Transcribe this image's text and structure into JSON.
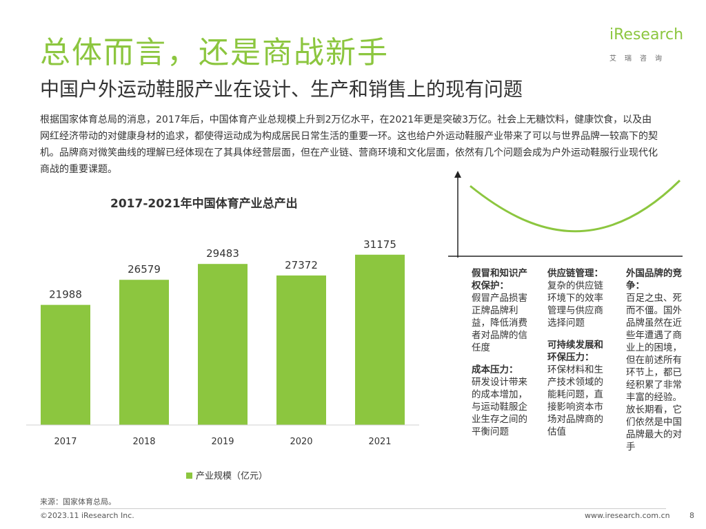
{
  "header": {
    "title": "总体而言，还是商战新手",
    "subtitle": "中国户外运动鞋服产业在设计、生产和销售上的现有问题"
  },
  "logo": {
    "text": "iResearch",
    "sub": "艾瑞咨询"
  },
  "intro": "根据国家体育总局的消息，2017年后，中国体育产业总规模上升到2万亿水平，在2021年更是突破3万亿。社会上无糖饮料，健康饮食，以及由网红经济带动的对健康身材的追求，都使得运动成为构成居民日常生活的重要一环。这也给户外运动鞋服产业带来了可以与世界品牌一较高下的契机。品牌商对微笑曲线的理解已经体现在了其具体经营层面，但在产业链、营商环境和文化层面，依然有几个问题会成为户外运动鞋服行业现代化商战的重要课题。",
  "chart_data": {
    "type": "bar",
    "title": "2017-2021年中国体育产业总产出",
    "categories": [
      "2017",
      "2018",
      "2019",
      "2020",
      "2021"
    ],
    "series": [
      {
        "name": "产业规模（亿元）",
        "values": [
          21988,
          26579,
          29483,
          27372,
          31175
        ]
      }
    ],
    "ylim": [
      0,
      35000
    ],
    "grid": false,
    "legend": "bottom",
    "bar_color": "#8cc63f"
  },
  "problems": [
    [
      {
        "head": "假冒和知识产权保护：",
        "body": "假冒产品损害正牌品牌利益，降低消费者对品牌的信任度"
      },
      {
        "head": "成本压力：",
        "body": "研发设计带来的成本增加，与运动鞋服企业生存之间的平衡问题"
      }
    ],
    [
      {
        "head": "供应链管理：",
        "body": "复杂的供应链环境下的效率管理与供应商选择问题"
      },
      {
        "head": "可持续发展和环保压力：",
        "body": "环保材料和生产技术领域的能耗问题，直接影响资本市场对品牌商的估值"
      }
    ],
    [
      {
        "head": "外国品牌的竞争：",
        "body": "百足之虫、死而不僵。国外品牌虽然在近些年遭遇了商业上的困境，但在前述所有环节上，都已经积累了非常丰富的经验。放长期看，它们依然是中国品牌最大的对手"
      }
    ]
  ],
  "footer": {
    "source": "来源：国家体育总局。",
    "copyright": "©2023.11 iResearch Inc.",
    "site": "www.iresearch.com.cn",
    "page": "8"
  },
  "colors": {
    "accent": "#8cc63f"
  }
}
